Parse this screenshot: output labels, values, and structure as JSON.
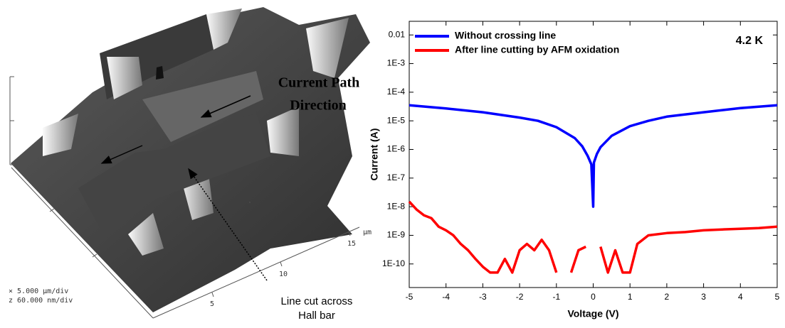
{
  "afm_image": {
    "annotation_arrow": [
      "Current Path",
      "Direction"
    ],
    "annotation_cut": [
      "Line cut across",
      "Hall bar"
    ],
    "axis_ticks": [
      "5",
      "10",
      "15"
    ],
    "axis_unit": "µm",
    "scale_x": "×  5.000 µm/div",
    "scale_z": "z  60.000 nm/div"
  },
  "chart_data": {
    "type": "line",
    "x_label": "Voltage (V)",
    "y_label": "Current (A)",
    "annotation": "4.2 K",
    "log_y": true,
    "legend": "upper left",
    "xlim": [
      -5,
      5
    ],
    "xticks": [
      -5,
      -4,
      -3,
      -2,
      -1,
      0,
      1,
      2,
      3,
      4,
      5
    ],
    "ylim": [
      1.5e-11,
      0.03
    ],
    "yticks": [
      {
        "value": 1e-10,
        "label": "1E-10"
      },
      {
        "value": 1e-09,
        "label": "1E-9"
      },
      {
        "value": 1e-08,
        "label": "1E-8"
      },
      {
        "value": 1e-07,
        "label": "1E-7"
      },
      {
        "value": 1e-06,
        "label": "1E-6"
      },
      {
        "value": 1e-05,
        "label": "1E-5"
      },
      {
        "value": 0.0001,
        "label": "1E-4"
      },
      {
        "value": 0.001,
        "label": "1E-3"
      },
      0.01
    ],
    "series": [
      {
        "name": "Without crossing line",
        "color": "#0000ff",
        "x": [
          -5,
          -4,
          -3,
          -2,
          -1.5,
          -1,
          -0.5,
          -0.3,
          -0.15,
          -0.05,
          0,
          0.02,
          0.1,
          0.2,
          0.5,
          1,
          1.5,
          2,
          3,
          4,
          5
        ],
        "values": [
          3.5e-05,
          2.7e-05,
          2e-05,
          1.3e-05,
          1e-05,
          6e-06,
          2.5e-06,
          1.3e-06,
          6e-07,
          3e-07,
          1e-08,
          3.5e-07,
          7e-07,
          1.2e-06,
          3e-06,
          6.5e-06,
          1e-05,
          1.4e-05,
          2e-05,
          2.8e-05,
          3.5e-05
        ]
      },
      {
        "name": "After line cutting by AFM oxidation",
        "color": "#ff0000",
        "x": [
          -5,
          -4.8,
          -4.6,
          -4.4,
          -4.2,
          -4,
          -3.8,
          -3.6,
          -3.4,
          -3.2,
          -3,
          -2.8,
          -2.6,
          -2.4,
          -2.2,
          -2,
          -1.8,
          -1.6,
          -1.4,
          -1.2,
          -1,
          -0.8,
          -0.6,
          -0.4,
          -0.2,
          0,
          0.2,
          0.4,
          0.6,
          0.8,
          1,
          1.2,
          1.5,
          2,
          2.5,
          3,
          3.5,
          4,
          4.5,
          5
        ],
        "values": [
          1.5e-08,
          8e-09,
          5e-09,
          4e-09,
          2e-09,
          1.5e-09,
          1e-09,
          5e-10,
          3e-10,
          1.5e-10,
          8e-11,
          5e-11,
          5e-11,
          1.5e-10,
          5e-11,
          3e-10,
          5e-10,
          3e-10,
          7e-10,
          3e-10,
          5e-11,
          null,
          5e-11,
          3e-10,
          4e-10,
          null,
          4e-10,
          5e-11,
          3e-10,
          5e-11,
          5e-11,
          5e-10,
          1e-09,
          1.2e-09,
          1.3e-09,
          1.5e-09,
          1.6e-09,
          1.7e-09,
          1.8e-09,
          2e-09
        ]
      }
    ]
  }
}
